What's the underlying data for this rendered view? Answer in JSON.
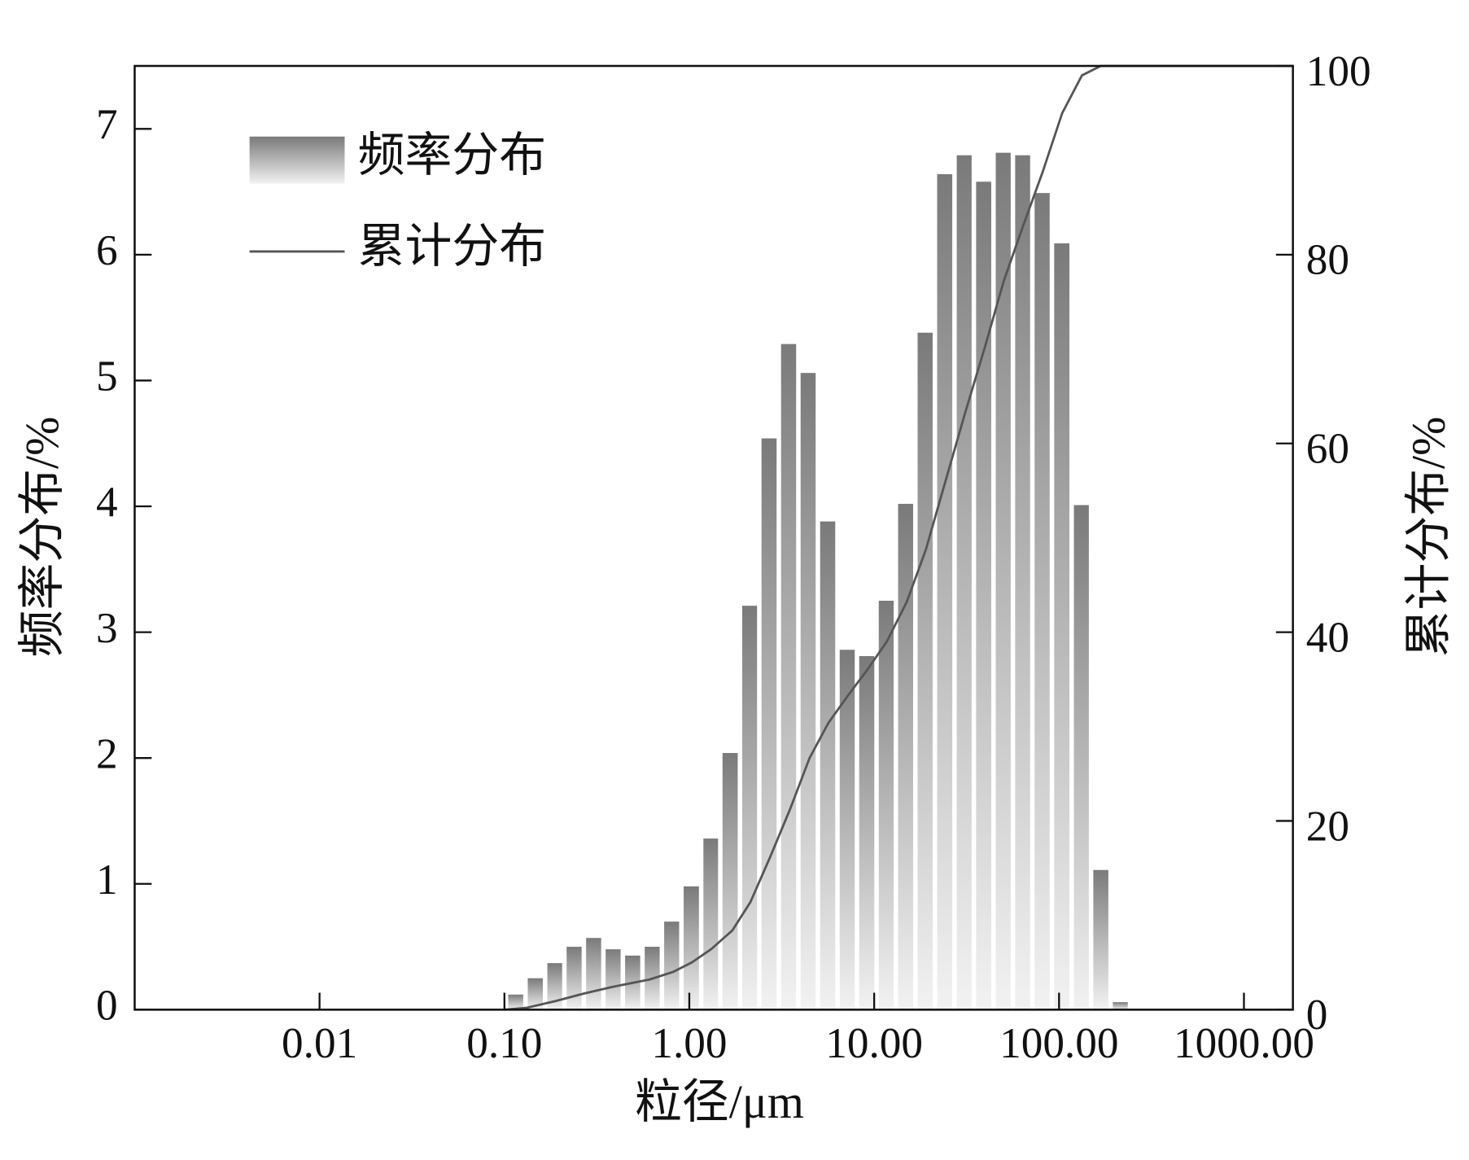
{
  "chart_data": {
    "type": "histogram",
    "xlabel": "粒径/μm",
    "ylabel": "频率分布/%",
    "y2label": "累计分布/%",
    "xscale": "log",
    "xlim": [
      0.001,
      1840
    ],
    "xticks": [
      0.01,
      {
        "value": 0.1,
        "label": "0.10"
      },
      {
        "value": 1,
        "label": "1.00"
      },
      {
        "value": 10,
        "label": "10.00"
      },
      {
        "value": 100,
        "label": "100.00"
      },
      {
        "value": 1000,
        "label": "1000.00"
      }
    ],
    "ylim": [
      0,
      7.5
    ],
    "yticks": [
      0,
      1,
      2,
      3,
      4,
      5,
      6,
      7
    ],
    "y2lim": [
      0,
      100
    ],
    "y2ticks": [
      0,
      20,
      40,
      60,
      80,
      100
    ],
    "grid": false,
    "legend": "upper left",
    "bins": [
      0.102,
      0.13,
      0.166,
      0.211,
      0.269,
      0.343,
      0.437,
      0.558,
      0.711,
      0.906,
      1.16,
      1.47,
      1.88,
      2.39,
      3.05,
      3.89,
      4.96,
      6.33,
      8.07,
      10.3,
      13.1,
      16.7,
      21.3,
      27.2,
      34.6,
      44.2,
      56.3,
      71.7,
      91.5,
      117,
      149,
      190,
      242
    ],
    "series": [
      {
        "name": "频率分布",
        "type": "histogram",
        "color": "#7a7a7a",
        "values": [
          0.12,
          0.25,
          0.37,
          0.5,
          0.57,
          0.48,
          0.43,
          0.5,
          0.7,
          0.98,
          1.36,
          2.04,
          3.21,
          4.54,
          5.29,
          5.06,
          3.88,
          2.86,
          2.81,
          3.25,
          4.02,
          5.38,
          6.64,
          6.79,
          6.58,
          6.81,
          6.79,
          6.49,
          6.09,
          4.01,
          1.11,
          0.06
        ]
      },
      {
        "name": "累计分布",
        "type": "line",
        "color": "#555555",
        "axis": "y2",
        "x": [
          0.1,
          0.132,
          0.188,
          0.268,
          0.381,
          0.61,
          0.817,
          1.03,
          1.31,
          1.71,
          2.14,
          2.74,
          3.5,
          4.48,
          5.66,
          7.16,
          9.17,
          11.7,
          15.0,
          19.0,
          24.3,
          31.0,
          39.7,
          50.2,
          64.3,
          81.3,
          104,
          133,
          168,
          1840
        ],
        "values": [
          0,
          0.2,
          0.9,
          1.7,
          2.4,
          3.2,
          4.0,
          5.0,
          6.4,
          8.4,
          11.4,
          16.2,
          21.2,
          26.7,
          30.4,
          33.2,
          36.0,
          39.0,
          43.2,
          48.7,
          56.0,
          63.2,
          70.2,
          77.2,
          83.2,
          88.7,
          95.0,
          99.0,
          100,
          100
        ]
      }
    ]
  }
}
